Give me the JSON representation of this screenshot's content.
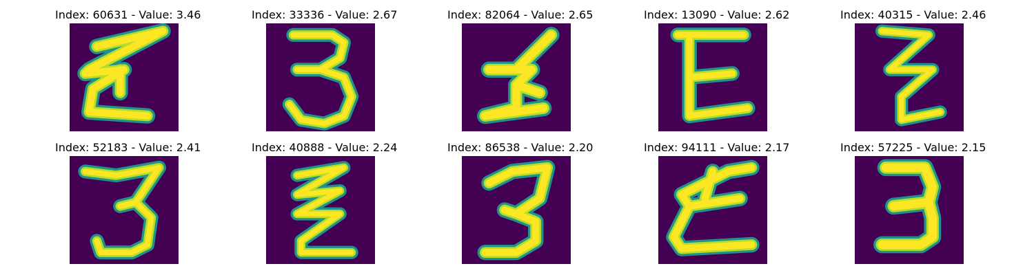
{
  "colors": {
    "background": "#440154",
    "stroke_core": "#fde725",
    "stroke_mid": "#b5de2b",
    "stroke_edge": "#21918c",
    "stroke_outer": "#3b528b"
  },
  "panels": [
    {
      "title": "Index: 60631 - Value: 3.46",
      "glyph": "ε-like"
    },
    {
      "title": "Index: 33336 - Value: 2.67",
      "glyph": "3"
    },
    {
      "title": "Index: 82064 - Value: 2.65",
      "glyph": "I-like"
    },
    {
      "title": "Index: 13090 - Value: 2.62",
      "glyph": "E"
    },
    {
      "title": "Index: 40315 - Value: 2.46",
      "glyph": "Z-like"
    },
    {
      "title": "Index: 52183 - Value: 2.41",
      "glyph": "3"
    },
    {
      "title": "Index: 40888 - Value: 2.24",
      "glyph": "Z-like"
    },
    {
      "title": "Index: 86538 - Value: 2.20",
      "glyph": "3"
    },
    {
      "title": "Index: 94111 - Value: 2.17",
      "glyph": "E"
    },
    {
      "title": "Index: 57225 - Value: 2.15",
      "glyph": "3"
    }
  ]
}
